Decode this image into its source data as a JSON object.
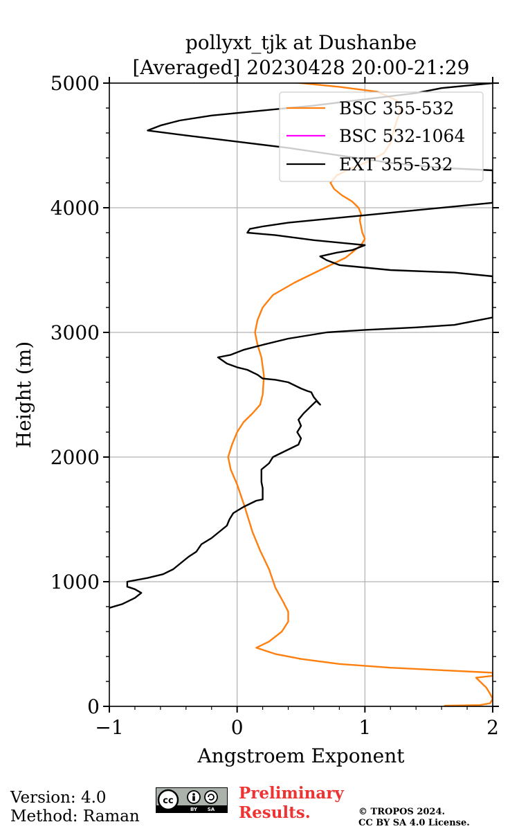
{
  "chart_data": {
    "type": "line",
    "title_line1": "pollyxt_tjk at Dushanbe",
    "title_line2": "[Averaged] 20230428 20:00-21:29",
    "xlabel": "Angstroem Exponent",
    "ylabel": "Height (m)",
    "xlim": [
      -1,
      2
    ],
    "ylim": [
      0,
      5000
    ],
    "xticks": [
      -1,
      0,
      1,
      2
    ],
    "xtick_labels": [
      "−1",
      "0",
      "1",
      "2"
    ],
    "yticks": [
      0,
      1000,
      2000,
      3000,
      4000,
      5000
    ],
    "ytick_labels": [
      "0",
      "1000",
      "2000",
      "3000",
      "4000",
      "5000"
    ],
    "grid": true,
    "legend_position": "top-right",
    "series": [
      {
        "name": "BSC 355-532",
        "color": "#ff7f0e",
        "points": [
          [
            1.62,
            5
          ],
          [
            1.9,
            10
          ],
          [
            1.98,
            25
          ],
          [
            2.0,
            60
          ],
          [
            1.98,
            100
          ],
          [
            1.95,
            150
          ],
          [
            1.9,
            200
          ],
          [
            1.87,
            230
          ],
          [
            2.0,
            245
          ],
          [
            2.0,
            270
          ],
          [
            1.9,
            275
          ],
          [
            1.6,
            290
          ],
          [
            1.2,
            310
          ],
          [
            0.8,
            340
          ],
          [
            0.5,
            380
          ],
          [
            0.3,
            420
          ],
          [
            0.15,
            470
          ],
          [
            0.25,
            520
          ],
          [
            0.35,
            600
          ],
          [
            0.4,
            680
          ],
          [
            0.4,
            760
          ],
          [
            0.36,
            840
          ],
          [
            0.3,
            950
          ],
          [
            0.25,
            1100
          ],
          [
            0.18,
            1250
          ],
          [
            0.12,
            1400
          ],
          [
            0.06,
            1600
          ],
          [
            0.0,
            1780
          ],
          [
            -0.05,
            1900
          ],
          [
            -0.07,
            2000
          ],
          [
            -0.04,
            2100
          ],
          [
            0.0,
            2200
          ],
          [
            0.05,
            2280
          ],
          [
            0.12,
            2350
          ],
          [
            0.18,
            2420
          ],
          [
            0.2,
            2500
          ],
          [
            0.21,
            2650
          ],
          [
            0.19,
            2800
          ],
          [
            0.16,
            2900
          ],
          [
            0.14,
            3000
          ],
          [
            0.16,
            3100
          ],
          [
            0.2,
            3200
          ],
          [
            0.28,
            3300
          ],
          [
            0.45,
            3400
          ],
          [
            0.65,
            3500
          ],
          [
            0.85,
            3600
          ],
          [
            0.97,
            3700
          ],
          [
            1.0,
            3750
          ],
          [
            0.98,
            3800
          ],
          [
            0.96,
            3900
          ],
          [
            0.97,
            3950
          ],
          [
            0.95,
            4000
          ],
          [
            0.9,
            4050
          ],
          [
            0.82,
            4100
          ],
          [
            0.76,
            4150
          ],
          [
            0.73,
            4200
          ],
          [
            0.78,
            4260
          ],
          [
            0.9,
            4320
          ],
          [
            1.05,
            4380
          ],
          [
            1.15,
            4440
          ],
          [
            1.2,
            4520
          ],
          [
            1.22,
            4600
          ],
          [
            1.25,
            4700
          ],
          [
            1.28,
            4780
          ],
          [
            1.25,
            4860
          ],
          [
            1.1,
            4930
          ],
          [
            0.8,
            4970
          ],
          [
            0.6,
            4990
          ],
          [
            0.5,
            5000
          ],
          [
            0.4,
            5010
          ]
        ]
      },
      {
        "name": "BSC 532-1064",
        "color": "#ff00ff",
        "points": []
      },
      {
        "name": "EXT 355-532",
        "color": "#000000",
        "points": [
          [
            -1.0,
            790
          ],
          [
            -0.9,
            820
          ],
          [
            -0.8,
            870
          ],
          [
            -0.75,
            910
          ],
          [
            -0.8,
            940
          ],
          [
            -0.86,
            960
          ],
          [
            -0.86,
            1000
          ],
          [
            -0.7,
            1030
          ],
          [
            -0.58,
            1060
          ],
          [
            -0.5,
            1100
          ],
          [
            -0.44,
            1150
          ],
          [
            -0.38,
            1200
          ],
          [
            -0.32,
            1240
          ],
          [
            -0.28,
            1300
          ],
          [
            -0.2,
            1350
          ],
          [
            -0.14,
            1400
          ],
          [
            -0.08,
            1450
          ],
          [
            -0.06,
            1500
          ],
          [
            -0.03,
            1550
          ],
          [
            0.05,
            1600
          ],
          [
            0.15,
            1650
          ],
          [
            0.2,
            1660
          ],
          [
            0.2,
            1700
          ],
          [
            0.2,
            1750
          ],
          [
            0.19,
            1800
          ],
          [
            0.19,
            1900
          ],
          [
            0.25,
            1950
          ],
          [
            0.28,
            2000
          ],
          [
            0.38,
            2050
          ],
          [
            0.48,
            2100
          ],
          [
            0.5,
            2150
          ],
          [
            0.47,
            2200
          ],
          [
            0.5,
            2250
          ],
          [
            0.48,
            2300
          ],
          [
            0.52,
            2350
          ],
          [
            0.57,
            2400
          ],
          [
            0.62,
            2450
          ],
          [
            0.65,
            2420
          ],
          [
            0.6,
            2480
          ],
          [
            0.58,
            2520
          ],
          [
            0.55,
            2530
          ],
          [
            0.5,
            2550
          ],
          [
            0.4,
            2600
          ],
          [
            0.3,
            2620
          ],
          [
            0.2,
            2630
          ],
          [
            0.16,
            2660
          ],
          [
            0.08,
            2700
          ],
          [
            0.0,
            2720
          ],
          [
            -0.08,
            2750
          ],
          [
            -0.15,
            2800
          ],
          [
            -0.05,
            2820
          ],
          [
            0.05,
            2860
          ],
          [
            0.2,
            2900
          ],
          [
            0.4,
            2950
          ],
          [
            0.7,
            3000
          ],
          [
            1.0,
            3020
          ],
          [
            1.4,
            3040
          ],
          [
            1.7,
            3060
          ],
          [
            1.8,
            3080
          ],
          [
            2.0,
            3120
          ],
          [
            2.0,
            3450
          ],
          [
            1.7,
            3480
          ],
          [
            1.2,
            3500
          ],
          [
            0.8,
            3540
          ],
          [
            0.7,
            3580
          ],
          [
            0.65,
            3610
          ],
          [
            0.78,
            3640
          ],
          [
            0.9,
            3660
          ],
          [
            1.0,
            3700
          ],
          [
            0.9,
            3710
          ],
          [
            0.6,
            3740
          ],
          [
            0.3,
            3780
          ],
          [
            0.08,
            3800
          ],
          [
            0.1,
            3830
          ],
          [
            0.2,
            3850
          ],
          [
            0.4,
            3880
          ],
          [
            0.7,
            3910
          ],
          [
            1.0,
            3940
          ],
          [
            1.4,
            3980
          ],
          [
            2.0,
            4040
          ],
          [
            2.0,
            4300
          ],
          [
            1.6,
            4320
          ],
          [
            1.2,
            4360
          ],
          [
            0.8,
            4420
          ],
          [
            0.4,
            4480
          ],
          [
            0.0,
            4530
          ],
          [
            -0.4,
            4580
          ],
          [
            -0.7,
            4620
          ],
          [
            -0.6,
            4660
          ],
          [
            -0.45,
            4700
          ],
          [
            -0.2,
            4740
          ],
          [
            0.2,
            4780
          ],
          [
            0.6,
            4820
          ],
          [
            1.0,
            4870
          ],
          [
            1.4,
            4920
          ],
          [
            1.6,
            4960
          ],
          [
            1.9,
            4990
          ],
          [
            2.0,
            5000
          ]
        ]
      }
    ]
  },
  "footer": {
    "version": "Version: 4.0",
    "method": "Method: Raman",
    "preliminary_line1": "Preliminary",
    "preliminary_line2": "Results.",
    "copyright_line1": "© TROPOS 2024.",
    "copyright_line2": "CC BY SA 4.0 License.",
    "badge_top": "cc",
    "badge_bottom_left": "BY",
    "badge_bottom_right": "SA"
  }
}
